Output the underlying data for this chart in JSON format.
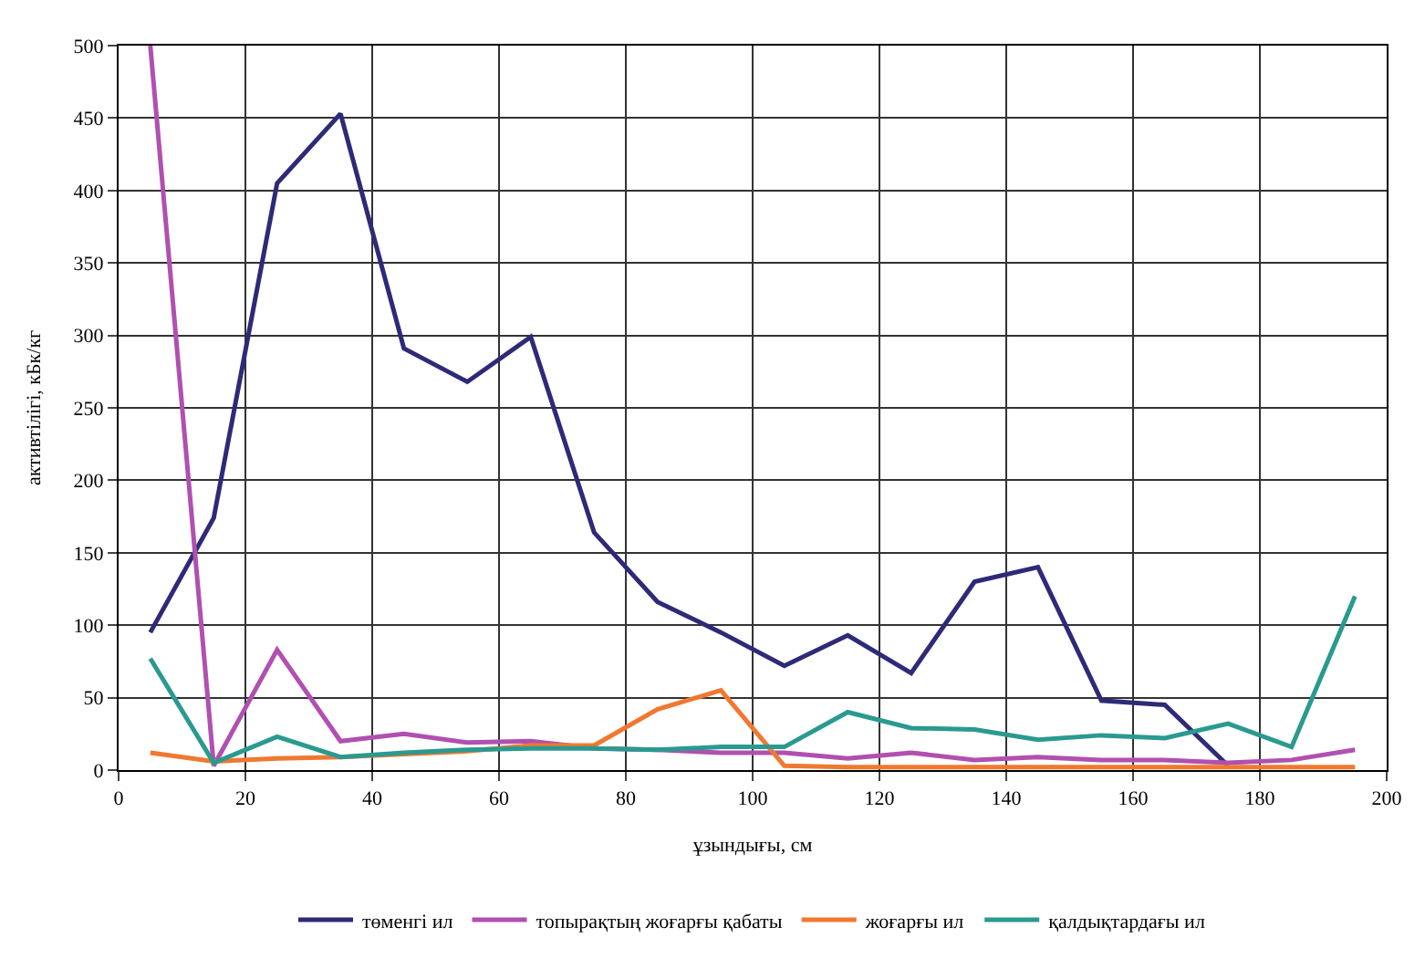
{
  "chart_data": {
    "type": "line",
    "xlabel": "ұзындығы, см",
    "ylabel": "активтілігі, кБк/кг",
    "x": [
      5,
      15,
      25,
      35,
      45,
      55,
      65,
      75,
      85,
      95,
      105,
      115,
      125,
      135,
      145,
      155,
      165,
      175,
      185,
      195
    ],
    "xlim": [
      0,
      200
    ],
    "xticks": [
      0,
      20,
      40,
      60,
      80,
      100,
      120,
      140,
      160,
      180,
      200
    ],
    "ylim": [
      0,
      500
    ],
    "yticks": [
      0,
      50,
      100,
      150,
      200,
      250,
      300,
      350,
      400,
      450,
      500
    ],
    "grid": true,
    "legend": "bottom",
    "marker": "none",
    "line_style": "solid",
    "series": [
      {
        "name": "төменгі ил",
        "color": "#2e2a78",
        "values": [
          95,
          174,
          405,
          453,
          291,
          268,
          299,
          164,
          116,
          95,
          72,
          93,
          67,
          130,
          140,
          48,
          45,
          3,
          null,
          null
        ]
      },
      {
        "name": "топырақтың жоғарғы қабаты",
        "color": "#b050b0",
        "values": [
          500,
          3,
          83,
          20,
          25,
          19,
          20,
          15,
          14,
          12,
          12,
          8,
          12,
          7,
          9,
          7,
          7,
          5,
          7,
          14
        ]
      },
      {
        "name": "жоғарғы ил",
        "color": "#f07830",
        "values": [
          12,
          6,
          8,
          9,
          11,
          13,
          17,
          17,
          42,
          55,
          3,
          2,
          2,
          2,
          2,
          2,
          2,
          2,
          2,
          2
        ]
      },
      {
        "name": "қалдықтардағы ил",
        "color": "#2a9a90",
        "values": [
          77,
          5,
          23,
          9,
          12,
          14,
          15,
          15,
          14,
          16,
          16,
          40,
          29,
          28,
          21,
          24,
          22,
          32,
          16,
          120
        ]
      }
    ]
  }
}
